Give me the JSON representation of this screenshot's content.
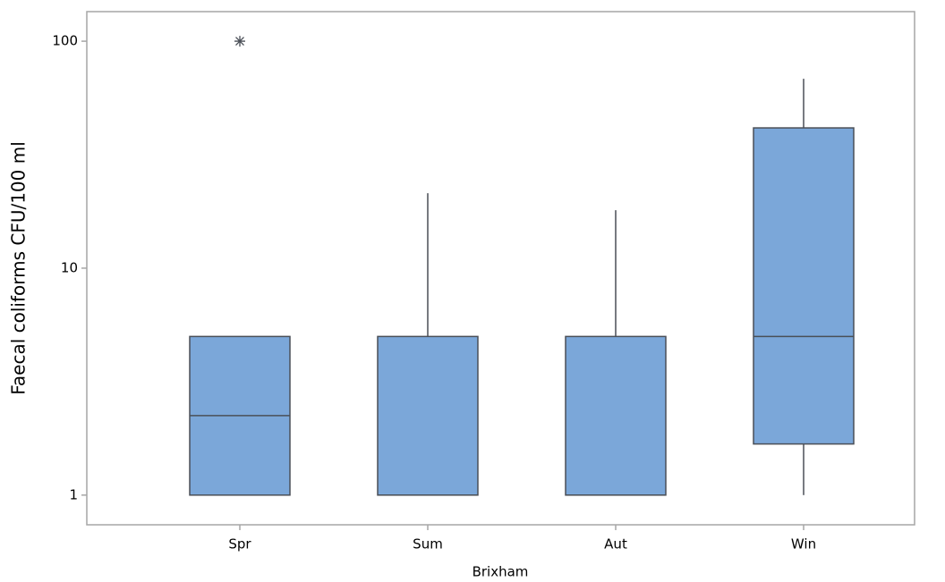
{
  "chart_data": {
    "type": "box",
    "x_label": "Brixham",
    "y_label": "Faecal coliforms CFU/100 ml",
    "categories": [
      "Spr",
      "Sum",
      "Aut",
      "Win"
    ],
    "boxes": [
      {
        "min": 1,
        "q1": 1,
        "median": 2.24,
        "q3": 5,
        "max": 5,
        "outliers": [
          100
        ]
      },
      {
        "min": 1,
        "q1": 1,
        "median": 1,
        "q3": 5,
        "max": 21.4,
        "outliers": []
      },
      {
        "min": 1,
        "q1": 1,
        "median": 1,
        "q3": 5,
        "max": 18,
        "outliers": []
      },
      {
        "min": 1,
        "q1": 1.68,
        "median": 5,
        "q3": 41.5,
        "max": 68.3,
        "outliers": []
      }
    ],
    "color": "#7ba7d9",
    "edge_color": "#4a4f57",
    "log_scale": true,
    "ylim": [
      0.74,
      135
    ],
    "yticks": [
      1,
      10,
      100
    ]
  }
}
